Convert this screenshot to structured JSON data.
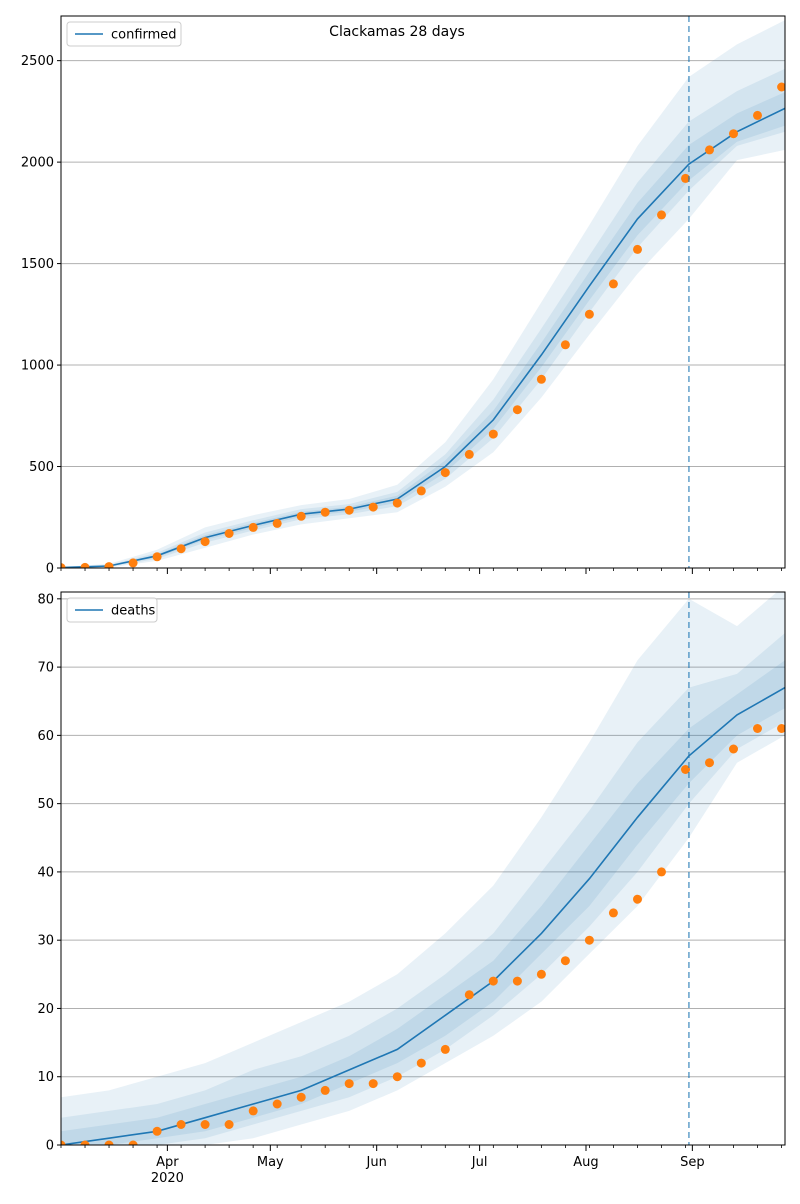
{
  "title": "Clackamas 28 days",
  "colors": {
    "model_line": "#1f77b4",
    "observed_points": "#ff7f0e",
    "band": "#1f77b4",
    "forecast_line": "#1f77b4",
    "grid": "#b0b0b0"
  },
  "x_axis": {
    "date_start": "2020-03-01",
    "date_end": "2020-09-28",
    "month_ticks": [
      {
        "date": "2020-04-01",
        "label": "Apr"
      },
      {
        "date": "2020-05-01",
        "label": "May"
      },
      {
        "date": "2020-06-01",
        "label": "Jun"
      },
      {
        "date": "2020-07-01",
        "label": "Jul"
      },
      {
        "date": "2020-08-01",
        "label": "Aug"
      },
      {
        "date": "2020-09-01",
        "label": "Sep"
      }
    ],
    "year_label": "2020",
    "forecast_start": "2020-08-31"
  },
  "chart_data": [
    {
      "type": "line",
      "panel": "top",
      "title": "Clackamas 28 days",
      "legend": {
        "label": "confirmed",
        "placement": "top-left"
      },
      "ylim": [
        0,
        2720
      ],
      "yticks": [
        0,
        500,
        1000,
        1500,
        2000,
        2500
      ],
      "grid": "horizontal",
      "model_series": {
        "name": "confirmed",
        "x": [
          "2020-03-01",
          "2020-03-15",
          "2020-03-29",
          "2020-04-12",
          "2020-04-26",
          "2020-05-10",
          "2020-05-24",
          "2020-06-07",
          "2020-06-21",
          "2020-07-05",
          "2020-07-19",
          "2020-08-02",
          "2020-08-16",
          "2020-08-31",
          "2020-09-14",
          "2020-09-28"
        ],
        "y": [
          2,
          10,
          60,
          150,
          210,
          265,
          290,
          340,
          500,
          730,
          1050,
          1390,
          1720,
          1990,
          2150,
          2265
        ]
      },
      "bands": [
        {
          "level": "outer",
          "upper": [
            5,
            20,
            90,
            200,
            260,
            310,
            340,
            410,
            620,
            930,
            1310,
            1690,
            2080,
            2420,
            2580,
            2700
          ],
          "lower": [
            0,
            3,
            35,
            100,
            165,
            215,
            245,
            275,
            400,
            570,
            840,
            1150,
            1450,
            1720,
            2010,
            2060
          ]
        },
        {
          "level": "middle",
          "upper": [
            3,
            15,
            75,
            175,
            235,
            290,
            315,
            375,
            560,
            830,
            1180,
            1540,
            1900,
            2200,
            2350,
            2460
          ],
          "lower": [
            0,
            6,
            45,
            125,
            185,
            240,
            265,
            305,
            440,
            640,
            930,
            1260,
            1580,
            1860,
            2080,
            2150
          ]
        },
        {
          "level": "inner",
          "upper": [
            2,
            12,
            67,
            162,
            222,
            277,
            302,
            357,
            530,
            775,
            1110,
            1460,
            1800,
            2085,
            2240,
            2345
          ],
          "lower": [
            1,
            8,
            52,
            138,
            197,
            252,
            277,
            322,
            470,
            685,
            990,
            1320,
            1640,
            1910,
            2100,
            2180
          ]
        }
      ],
      "observed": {
        "x": [
          "2020-03-01",
          "2020-03-08",
          "2020-03-15",
          "2020-03-22",
          "2020-03-29",
          "2020-04-05",
          "2020-04-12",
          "2020-04-19",
          "2020-04-26",
          "2020-05-03",
          "2020-05-10",
          "2020-05-17",
          "2020-05-24",
          "2020-05-31",
          "2020-06-07",
          "2020-06-14",
          "2020-06-21",
          "2020-06-28",
          "2020-07-05",
          "2020-07-12",
          "2020-07-19",
          "2020-07-26",
          "2020-08-02",
          "2020-08-09",
          "2020-08-16",
          "2020-08-23",
          "2020-08-30",
          "2020-09-06",
          "2020-09-13",
          "2020-09-20",
          "2020-09-27"
        ],
        "y": [
          2,
          3,
          7,
          25,
          55,
          95,
          130,
          170,
          200,
          220,
          255,
          275,
          285,
          300,
          320,
          380,
          470,
          560,
          660,
          780,
          930,
          1100,
          1250,
          1400,
          1570,
          1740,
          1920,
          2060,
          2140,
          2230,
          2370
        ]
      }
    },
    {
      "type": "line",
      "panel": "bottom",
      "legend": {
        "label": "deaths",
        "placement": "top-left"
      },
      "ylim": [
        0,
        81
      ],
      "yticks": [
        0,
        10,
        20,
        30,
        40,
        50,
        60,
        70,
        80
      ],
      "grid": "horizontal",
      "model_series": {
        "name": "deaths",
        "x": [
          "2020-03-01",
          "2020-03-15",
          "2020-03-29",
          "2020-04-12",
          "2020-04-26",
          "2020-05-10",
          "2020-05-24",
          "2020-06-07",
          "2020-06-21",
          "2020-07-05",
          "2020-07-19",
          "2020-08-02",
          "2020-08-16",
          "2020-08-31",
          "2020-09-14",
          "2020-09-28"
        ],
        "y": [
          0,
          1,
          2,
          4,
          6,
          8,
          11,
          14,
          19,
          24,
          31,
          39,
          48,
          57,
          63,
          67
        ]
      },
      "bands": [
        {
          "level": "outer",
          "upper": [
            7,
            8,
            10,
            12,
            15,
            18,
            21,
            25,
            31,
            38,
            48,
            59,
            71,
            80,
            76,
            82
          ],
          "lower": [
            0,
            0,
            0,
            0,
            1,
            3,
            5,
            8,
            12,
            16,
            21,
            28,
            35,
            45,
            56,
            60
          ]
        },
        {
          "level": "middle",
          "upper": [
            4,
            5,
            6,
            8,
            11,
            13,
            16,
            20,
            25,
            31,
            40,
            49,
            59,
            67,
            69,
            75
          ],
          "lower": [
            0,
            0,
            0,
            1,
            3,
            5,
            7,
            10,
            14,
            19,
            25,
            32,
            40,
            50,
            58,
            62
          ]
        },
        {
          "level": "inner",
          "upper": [
            2,
            3,
            4,
            6,
            8,
            10,
            13,
            17,
            22,
            27,
            35,
            44,
            53,
            61,
            66,
            71
          ],
          "lower": [
            0,
            0,
            1,
            2,
            4,
            6,
            9,
            12,
            16,
            21,
            28,
            35,
            44,
            53,
            60,
            64
          ]
        }
      ],
      "observed": {
        "x": [
          "2020-03-01",
          "2020-03-08",
          "2020-03-15",
          "2020-03-22",
          "2020-03-29",
          "2020-04-05",
          "2020-04-12",
          "2020-04-19",
          "2020-04-26",
          "2020-05-03",
          "2020-05-10",
          "2020-05-17",
          "2020-05-24",
          "2020-05-31",
          "2020-06-07",
          "2020-06-14",
          "2020-06-21",
          "2020-06-28",
          "2020-07-05",
          "2020-07-12",
          "2020-07-19",
          "2020-07-26",
          "2020-08-02",
          "2020-08-09",
          "2020-08-16",
          "2020-08-23",
          "2020-08-30",
          "2020-09-06",
          "2020-09-13",
          "2020-09-20",
          "2020-09-27"
        ],
        "y": [
          0,
          0,
          0,
          0,
          2,
          3,
          3,
          3,
          5,
          6,
          7,
          8,
          9,
          9,
          10,
          12,
          14,
          22,
          24,
          24,
          25,
          27,
          30,
          34,
          36,
          40,
          55,
          56,
          58,
          61,
          61
        ]
      }
    }
  ]
}
